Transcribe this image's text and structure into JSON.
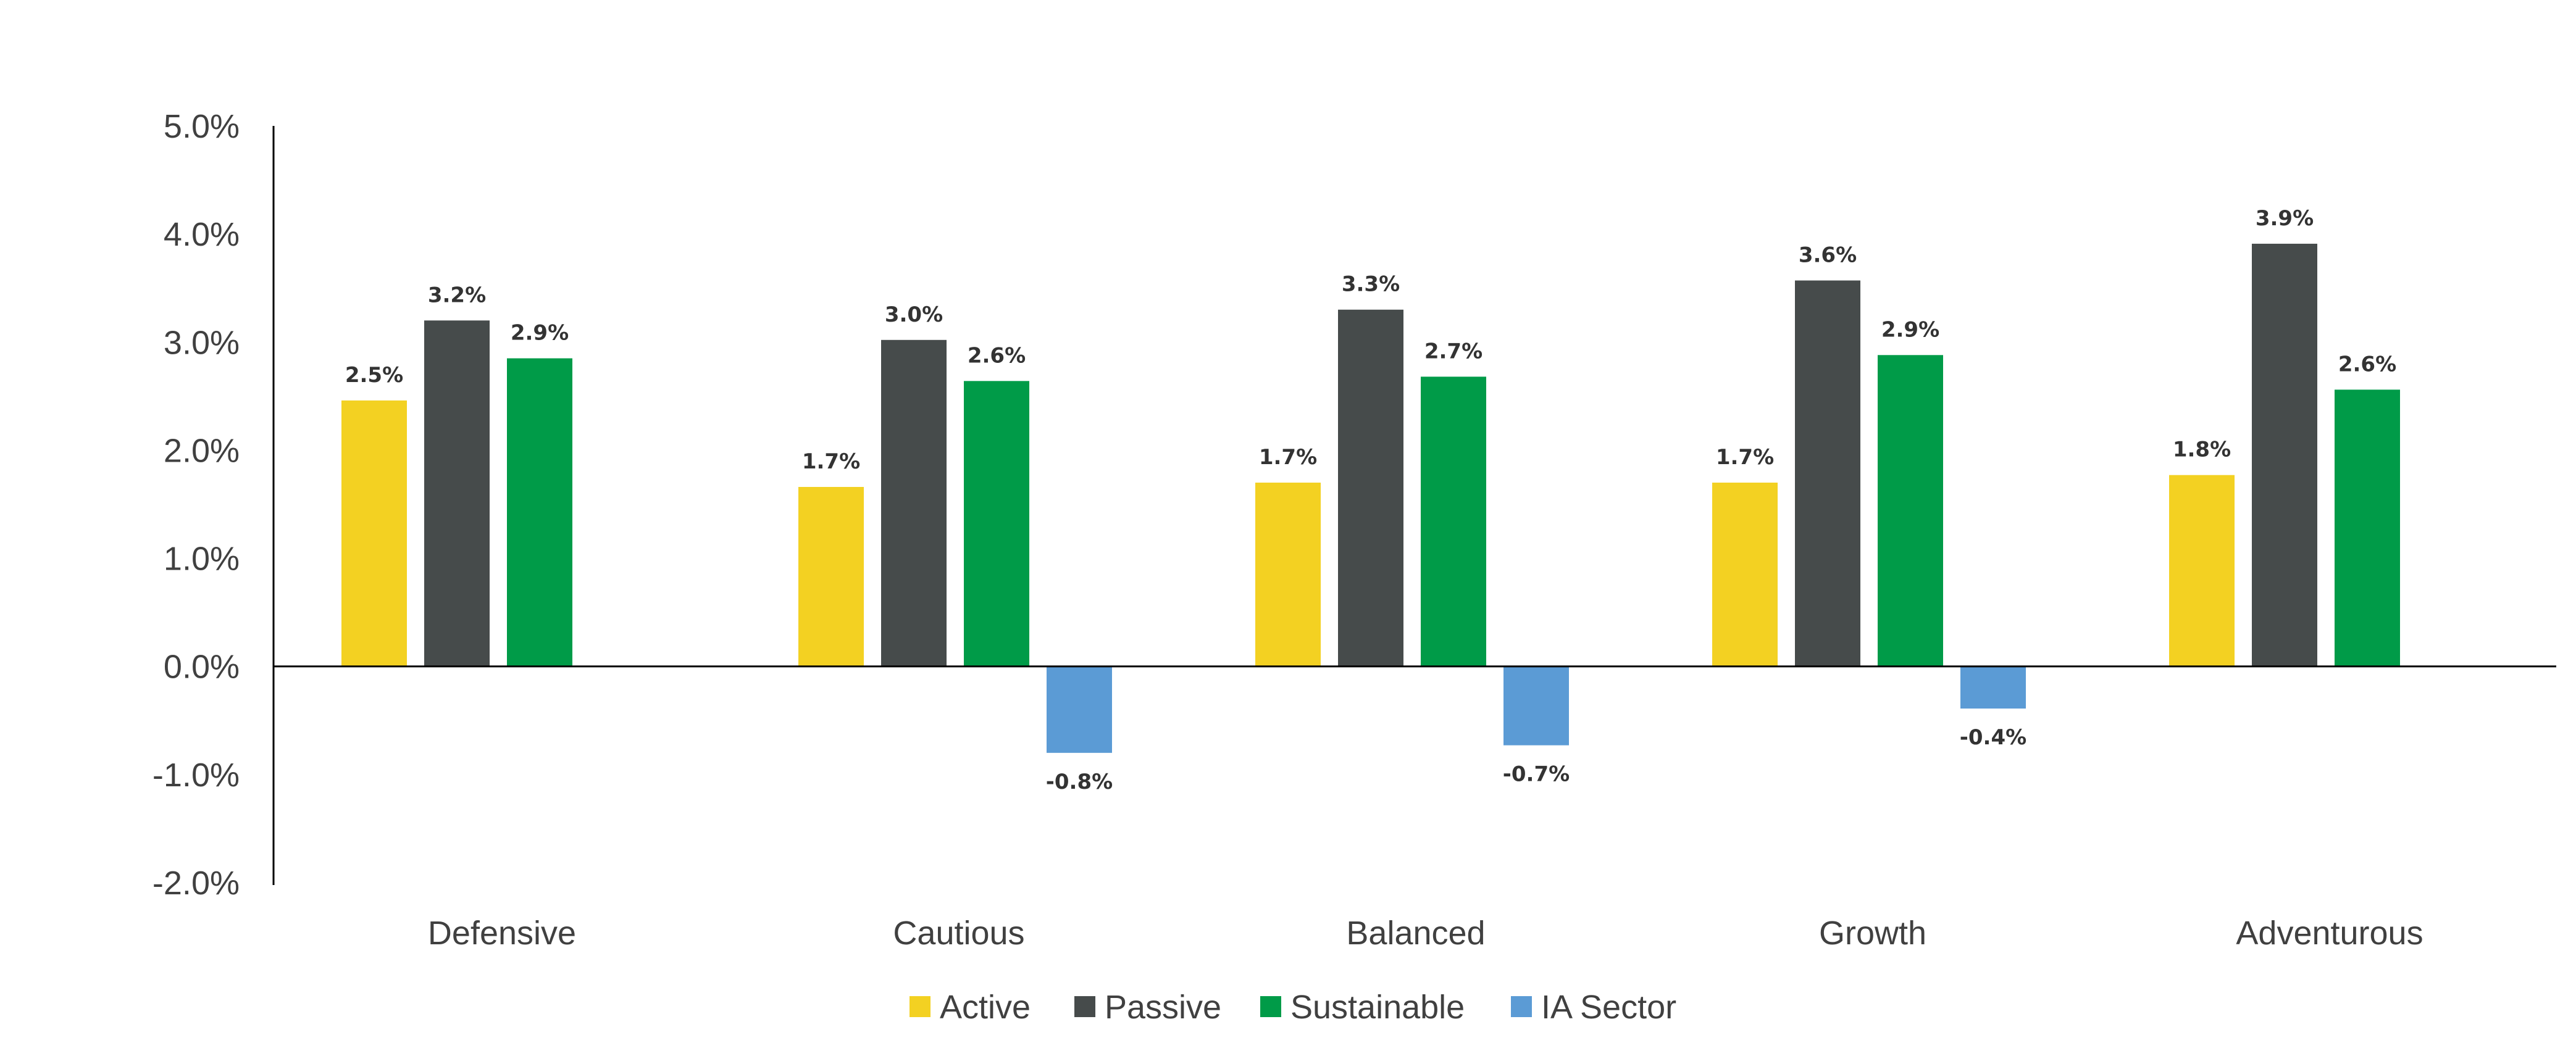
{
  "chart_data": {
    "type": "bar",
    "title": "",
    "xlabel": "",
    "ylabel": "",
    "ylim": [
      -2.0,
      5.0
    ],
    "yticks": [
      "5.0%",
      "4.0%",
      "3.0%",
      "2.0%",
      "1.0%",
      "0.0%",
      "-1.0%",
      "-2.0%"
    ],
    "ytick_values": [
      5,
      4,
      3,
      2,
      1,
      0,
      -1,
      -2
    ],
    "categories": [
      "Defensive",
      "Cautious",
      "Balanced",
      "Growth",
      "Adventurous"
    ],
    "grid": false,
    "legend_position": "bottom",
    "series": [
      {
        "name": "Active",
        "color": "#F3D122",
        "values": [
          2.46,
          1.66,
          1.7,
          1.7,
          1.77
        ],
        "labels": [
          "2.5%",
          "1.7%",
          "1.7%",
          "1.7%",
          "1.8%"
        ]
      },
      {
        "name": "Passive",
        "color": "#464B4B",
        "values": [
          3.2,
          3.02,
          3.3,
          3.57,
          3.91
        ],
        "labels": [
          "3.2%",
          "3.0%",
          "3.3%",
          "3.6%",
          "3.9%"
        ]
      },
      {
        "name": "Sustainable",
        "color": "#009B48",
        "values": [
          2.85,
          2.64,
          2.68,
          2.88,
          2.56
        ],
        "labels": [
          "2.9%",
          "2.6%",
          "2.7%",
          "2.9%",
          "2.6%"
        ]
      },
      {
        "name": "IA Sector",
        "color": "#5B9BD5",
        "values": [
          null,
          -0.8,
          -0.73,
          -0.39,
          null
        ],
        "labels": [
          null,
          "-0.8%",
          "-0.7%",
          "-0.4%",
          null
        ]
      }
    ]
  }
}
